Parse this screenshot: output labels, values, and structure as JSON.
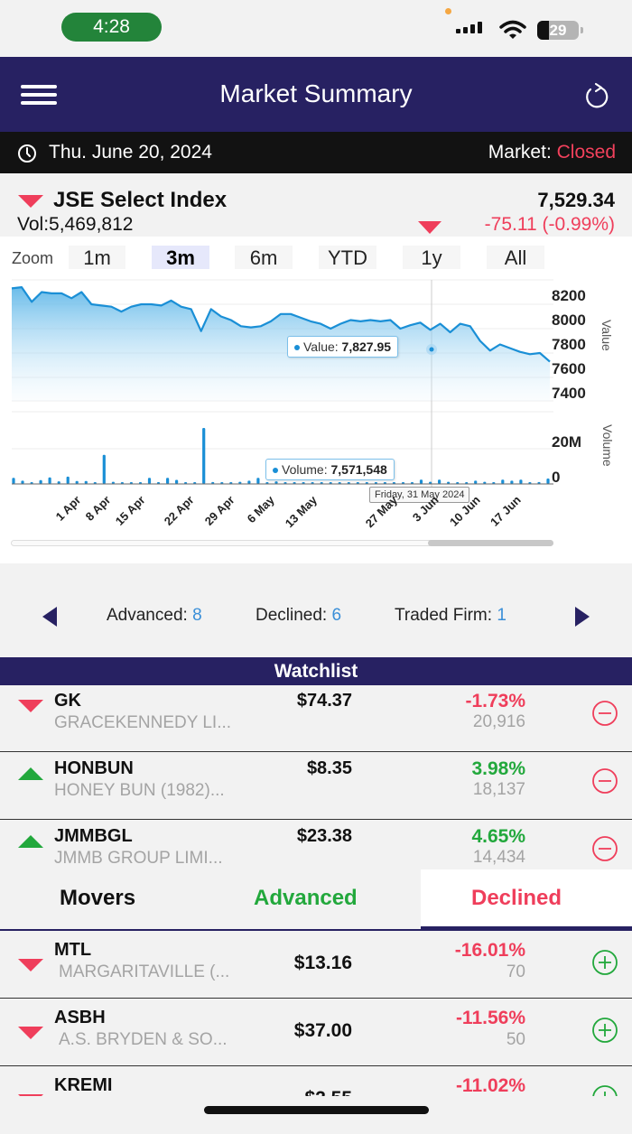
{
  "status_bar": {
    "time": "4:28",
    "battery": "29"
  },
  "navbar": {
    "title": "Market Summary",
    "menu_icon": "hamburger-icon",
    "refresh_icon": "refresh-icon"
  },
  "datebar": {
    "date": "Thu. June 20, 2024",
    "market_label": "Market: ",
    "market_status": "Closed"
  },
  "index": {
    "name": "JSE Select Index",
    "volume": "Vol:5,469,812",
    "value": "7,529.34",
    "change": "-75.11 (-0.99%)",
    "direction": "down"
  },
  "zoom": {
    "label": "Zoom",
    "options": [
      "1m",
      "3m",
      "6m",
      "YTD",
      "1y",
      "All"
    ],
    "selected": "3m"
  },
  "chart_data": [
    {
      "type": "area",
      "title": "JSE Select Index",
      "ylabel": "Value",
      "y_ticks": [
        "8200",
        "8000",
        "7800",
        "7600",
        "7400"
      ],
      "ylim": [
        7400,
        8200
      ],
      "tooltip": {
        "label": "Value: ",
        "value": "7,827.95"
      },
      "values": [
        8130,
        8140,
        8020,
        8100,
        8090,
        8090,
        8050,
        8100,
        8000,
        7990,
        7980,
        7940,
        7980,
        8000,
        8000,
        7990,
        8030,
        7980,
        7960,
        7780,
        7960,
        7900,
        7870,
        7820,
        7810,
        7820,
        7860,
        7920,
        7920,
        7890,
        7860,
        7840,
        7800,
        7840,
        7870,
        7860,
        7870,
        7860,
        7870,
        7800,
        7828,
        7850,
        7790,
        7840,
        7770,
        7840,
        7820,
        7700,
        7620,
        7670,
        7640,
        7610,
        7590,
        7600,
        7529
      ]
    },
    {
      "type": "bar",
      "title": "Volume",
      "ylabel": "Volume",
      "y_ticks": [
        "20M",
        "0"
      ],
      "tooltip": {
        "label": "Volume: ",
        "value": "7,571,548",
        "date": "Friday, 31 May 2024"
      },
      "x_ticks": [
        "1 Apr",
        "8 Apr",
        "15 Apr",
        "22 Apr",
        "29 Apr",
        "6 May",
        "13 May",
        "27 May",
        "3 Jun",
        "10 Jun",
        "17 Jun"
      ],
      "values": [
        2.8,
        1.5,
        0.4,
        1.8,
        3.0,
        1.2,
        3.4,
        1.4,
        1.4,
        0.6,
        13.5,
        1.0,
        0.6,
        0.5,
        0.5,
        2.8,
        0.6,
        2.8,
        1.9,
        0.6,
        0.6,
        26.0,
        0.9,
        0.6,
        0.5,
        1.0,
        1.5,
        2.8,
        0.4,
        1.2,
        0.8,
        0.6,
        0.6,
        0.6,
        0.6,
        0.6,
        0.6,
        0.6,
        0.6,
        0.6,
        0.6,
        0.6,
        0.6,
        0.6,
        0.6,
        2.0,
        1.0,
        2.0,
        1.0,
        0.3,
        0.3,
        1.5,
        1.0,
        0.8,
        2.0,
        1.5,
        2.0,
        0.6,
        0.9,
        2.5
      ]
    }
  ],
  "breadth": {
    "advanced_label": "Advanced: ",
    "advanced": "8",
    "declined_label": "Declined: ",
    "declined": "6",
    "traded_label": "Traded Firm: ",
    "traded": "1"
  },
  "watchlist": {
    "title": "Watchlist",
    "items": [
      {
        "symbol": "GK",
        "name": "GRACEKENNEDY LI...",
        "price": "$74.37",
        "change": "-1.73%",
        "volume": "20,916",
        "direction": "down"
      },
      {
        "symbol": "HONBUN",
        "name": "HONEY BUN (1982)...",
        "price": "$8.35",
        "change": "3.98%",
        "volume": "18,137",
        "direction": "up"
      },
      {
        "symbol": "JMMBGL",
        "name": "JMMB GROUP LIMI...",
        "price": "$23.38",
        "change": "4.65%",
        "volume": "14,434",
        "direction": "up"
      }
    ]
  },
  "movers": {
    "tabs": [
      "Movers",
      "Advanced",
      "Declined"
    ],
    "selected": "Declined",
    "items": [
      {
        "symbol": "MTL",
        "name": "MARGARITAVILLE (...",
        "price": "$13.16",
        "change": "-16.01%",
        "volume": "70"
      },
      {
        "symbol": "ASBH",
        "name": "A.S. BRYDEN & SO...",
        "price": "$37.00",
        "change": "-11.56%",
        "volume": "50"
      },
      {
        "symbol": "KREMI",
        "name": "",
        "price": "$2.55",
        "change": "-11.02%",
        "volume": ""
      }
    ]
  },
  "colors": {
    "navy": "#272162",
    "red": "#ef3e5b",
    "green": "#22a83c",
    "blue": "#1a8fd6"
  }
}
